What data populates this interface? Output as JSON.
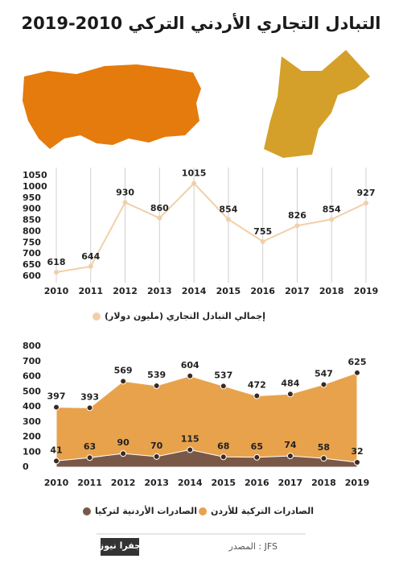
{
  "title": "التبادل التجاري الأردني التركي  2010-2019",
  "source": "المصدر : JFS",
  "logo": "جفرا نيوز",
  "chart_data": [
    {
      "type": "line",
      "categories": [
        2010,
        2011,
        2012,
        2013,
        2014,
        2015,
        2016,
        2017,
        2018,
        2019
      ],
      "series": [
        {
          "name": "إجمالي التبادل التجاري (مليون دولار)",
          "color": "#f2cfa8",
          "values": [
            618,
            644,
            930,
            860,
            1015,
            854,
            755,
            826,
            854,
            927
          ]
        }
      ],
      "ylim": [
        600,
        1050
      ],
      "yticks": [
        600,
        650,
        700,
        750,
        800,
        850,
        900,
        950,
        1000,
        1050
      ],
      "grid": true
    },
    {
      "type": "area",
      "categories": [
        2010,
        2011,
        2012,
        2013,
        2014,
        2015,
        2016,
        2017,
        2018,
        2019
      ],
      "series": [
        {
          "name": "الصادرات التركية للأردن",
          "color": "#e8a24c",
          "values": [
            397,
            393,
            569,
            539,
            604,
            537,
            472,
            484,
            547,
            625
          ]
        },
        {
          "name": "الصادرات الأردنية لتركيا",
          "color": "#7a5848",
          "values": [
            41,
            63,
            90,
            70,
            115,
            68,
            65,
            74,
            58,
            32
          ]
        }
      ],
      "ylim": [
        0,
        800
      ],
      "yticks": [
        0,
        100,
        200,
        300,
        400,
        500,
        600,
        700,
        800
      ],
      "grid": false
    }
  ]
}
